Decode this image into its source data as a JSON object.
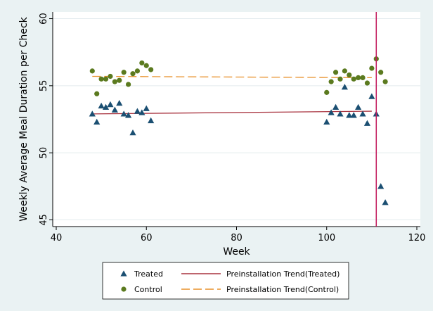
{
  "chart_data": {
    "type": "scatter",
    "xlabel": "Week",
    "ylabel": "Weekly Average Meal Duration per Check",
    "xlim": [
      40,
      120
    ],
    "ylim": [
      45,
      60
    ],
    "xticks": [
      40,
      60,
      80,
      100,
      120
    ],
    "yticks": [
      45,
      50,
      55,
      60
    ],
    "grid": "horizontal",
    "vline_x": 111,
    "legend_position": "bottom",
    "series": [
      {
        "name": "Treated",
        "kind": "scatter",
        "marker": "triangle",
        "color": "#1b4f72",
        "points": [
          [
            48,
            52.9
          ],
          [
            49,
            52.3
          ],
          [
            50,
            53.5
          ],
          [
            51,
            53.4
          ],
          [
            52,
            53.6
          ],
          [
            53,
            53.2
          ],
          [
            54,
            53.7
          ],
          [
            55,
            52.9
          ],
          [
            56,
            52.8
          ],
          [
            57,
            51.5
          ],
          [
            58,
            53.1
          ],
          [
            59,
            53.0
          ],
          [
            60,
            53.3
          ],
          [
            61,
            52.4
          ],
          [
            100,
            52.3
          ],
          [
            101,
            53.0
          ],
          [
            102,
            53.4
          ],
          [
            103,
            52.9
          ],
          [
            104,
            54.9
          ],
          [
            105,
            52.8
          ],
          [
            106,
            52.8
          ],
          [
            107,
            53.4
          ],
          [
            108,
            52.9
          ],
          [
            109,
            52.2
          ],
          [
            110,
            54.2
          ],
          [
            111,
            52.9
          ],
          [
            112,
            47.5
          ],
          [
            113,
            46.3
          ]
        ]
      },
      {
        "name": "Control",
        "kind": "scatter",
        "marker": "circle",
        "color": "#5b7a1f",
        "points": [
          [
            48,
            56.1
          ],
          [
            49,
            54.4
          ],
          [
            50,
            55.5
          ],
          [
            51,
            55.5
          ],
          [
            52,
            55.7
          ],
          [
            53,
            55.3
          ],
          [
            54,
            55.4
          ],
          [
            55,
            56.0
          ],
          [
            56,
            55.1
          ],
          [
            57,
            55.9
          ],
          [
            58,
            56.1
          ],
          [
            59,
            56.7
          ],
          [
            60,
            56.5
          ],
          [
            61,
            56.2
          ],
          [
            100,
            54.5
          ],
          [
            101,
            55.3
          ],
          [
            102,
            56.0
          ],
          [
            103,
            55.5
          ],
          [
            104,
            56.1
          ],
          [
            105,
            55.8
          ],
          [
            106,
            55.5
          ],
          [
            107,
            55.6
          ],
          [
            108,
            55.6
          ],
          [
            109,
            55.2
          ],
          [
            110,
            56.3
          ],
          [
            111,
            57.0
          ],
          [
            112,
            56.0
          ],
          [
            113,
            55.3
          ]
        ]
      },
      {
        "name": "Preinstallation Trend(Treated)",
        "kind": "line",
        "dash": "solid",
        "color": "#a8323e",
        "points": [
          [
            48,
            52.9
          ],
          [
            110,
            53.1
          ]
        ]
      },
      {
        "name": "Preinstallation Trend(Control)",
        "kind": "line",
        "dash": "dashed",
        "color": "#e8902a",
        "points": [
          [
            48,
            55.7
          ],
          [
            110,
            55.6
          ]
        ]
      }
    ],
    "legend": [
      {
        "label": "Treated",
        "symbol": "triangle",
        "color": "#1b4f72"
      },
      {
        "label": "Preinstallation Trend(Treated)",
        "symbol": "line-solid",
        "color": "#a8323e"
      },
      {
        "label": "Control",
        "symbol": "circle",
        "color": "#5b7a1f"
      },
      {
        "label": "Preinstallation Trend(Control)",
        "symbol": "line-dashed",
        "color": "#e8902a"
      }
    ],
    "vline_color": "#c2185b"
  }
}
